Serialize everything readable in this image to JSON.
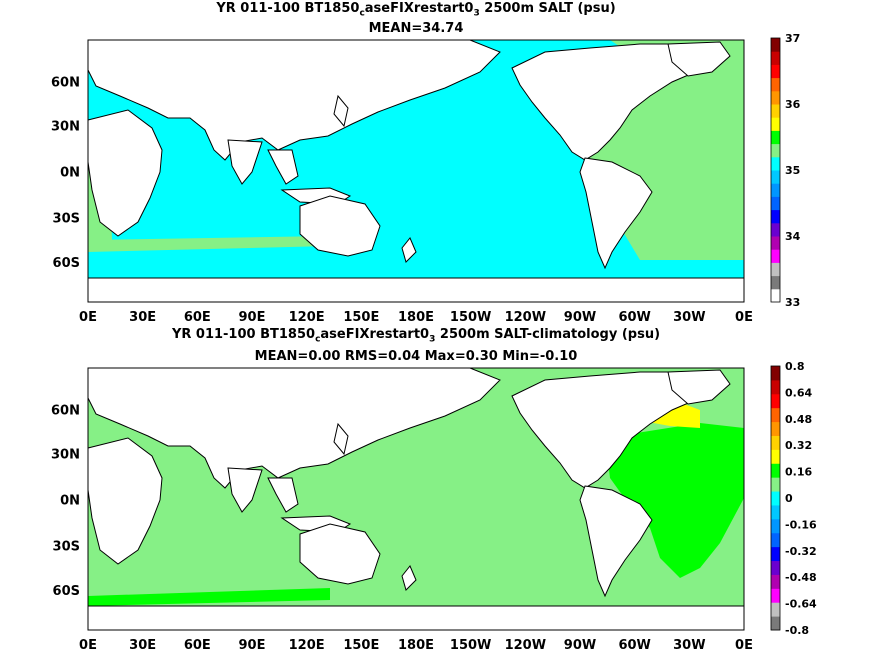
{
  "panels": [
    {
      "title_prefix": "YR 011-100 BT1850",
      "title_sub": "c",
      "title_mid": "aseFIXrestart0",
      "title_sub2": "3",
      "title_suffix": " 2500m SALT (psu)",
      "stats": "MEAN=34.74",
      "colorbar": {
        "labels": [
          "37",
          "36",
          "35",
          "34",
          "33"
        ],
        "colors": [
          "#ffffff",
          "#7a7a7a",
          "#c0c0c0",
          "#ff00ff",
          "#b000b0",
          "#6a00d0",
          "#0000ff",
          "#0064ff",
          "#0096ff",
          "#00c8ff",
          "#00ffff",
          "#86f086",
          "#00ff00",
          "#ffff00",
          "#ffd200",
          "#ff9600",
          "#ff6400",
          "#ff0000",
          "#c80000",
          "#820000"
        ]
      }
    },
    {
      "title_prefix": "YR 011-100 BT1850",
      "title_sub": "c",
      "title_mid": "aseFIXrestart0",
      "title_sub2": "3",
      "title_suffix": " 2500m SALT-climatology (psu)",
      "stats": "MEAN=0.00   RMS=0.04   Max=0.30   Min=-0.10",
      "colorbar": {
        "labels": [
          "0.8",
          "0.64",
          "0.48",
          "0.32",
          "0.16",
          "0",
          "-0.16",
          "-0.32",
          "-0.48",
          "-0.64",
          "-0.8"
        ],
        "colors": [
          "#7a7a7a",
          "#c0c0c0",
          "#ff00ff",
          "#b000b0",
          "#6a00d0",
          "#0000ff",
          "#0064ff",
          "#0096ff",
          "#00c8ff",
          "#00ffff",
          "#86f086",
          "#00ff00",
          "#ffff00",
          "#ffd200",
          "#ff9600",
          "#ff6400",
          "#ff0000",
          "#c80000",
          "#820000"
        ]
      }
    }
  ],
  "lat_labels": [
    "60N",
    "30N",
    "0N",
    "30S",
    "60S"
  ],
  "lon_labels": [
    "0E",
    "30E",
    "60E",
    "90E",
    "120E",
    "150E",
    "180E",
    "150W",
    "120W",
    "90W",
    "60W",
    "30W",
    "0E"
  ],
  "colors": {
    "ocean_top": "#00ffff",
    "ocean_bottom": "#86f086",
    "atlantic_top": "#86f086",
    "atlantic_bottom": "#00ff00",
    "land": "#ffffff"
  }
}
